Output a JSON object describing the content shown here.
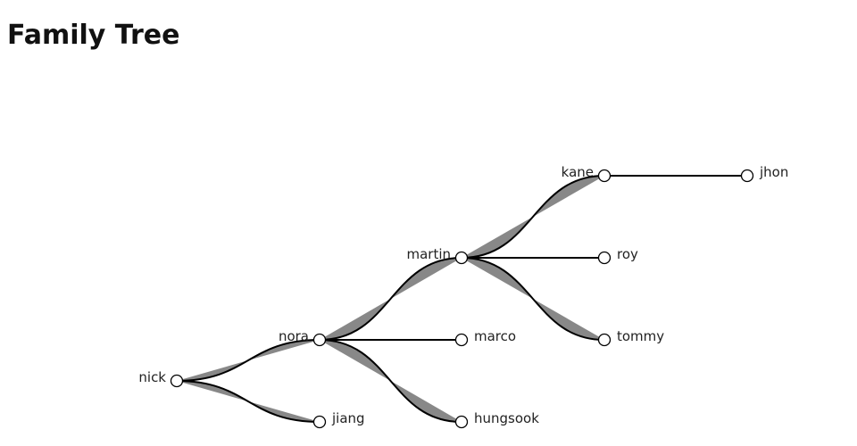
{
  "header": {
    "title": "Family Tree"
  },
  "tree": {
    "label": "nick",
    "children": [
      {
        "label": "nora",
        "children": [
          {
            "label": "martin",
            "children": [
              {
                "label": "kane",
                "children": [
                  {
                    "label": "jhon"
                  }
                ]
              },
              {
                "label": "roy"
              },
              {
                "label": "tommy"
              }
            ]
          },
          {
            "label": "marco"
          },
          {
            "label": "hungsook"
          }
        ]
      },
      {
        "label": "jiang"
      }
    ]
  }
}
